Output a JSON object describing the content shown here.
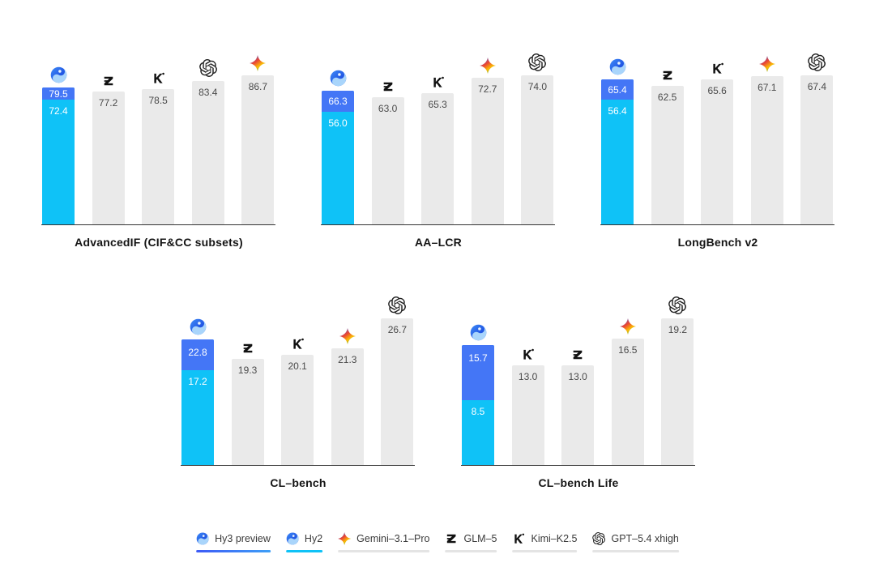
{
  "colors": {
    "hy3_blue": "#4476f6",
    "hy2_cyan": "#0fc2f7",
    "bar_gray": "#eaeaea",
    "axis": "#333333",
    "value_text": "#4a4a4a",
    "title_text": "#141414",
    "legend_text": "#3a3a3a",
    "underline_gray": "#e4e4e4",
    "hy3_underline_from": "#3d5af6",
    "hy3_underline_to": "#3e9ff7"
  },
  "chart_data": [
    {
      "type": "bar",
      "title": "AdvancedIF (CIF&CC subsets)",
      "ylim": [
        0,
        86.7
      ],
      "bars": [
        {
          "model": "Hunyuan",
          "icon": "hunyuan-icon",
          "stacked": true,
          "hy3_preview": 79.5,
          "hy2": 72.4,
          "hy3_label": "79.5",
          "hy2_label": "72.4"
        },
        {
          "model": "GLM-5",
          "icon": "glm-icon",
          "value": 77.2,
          "label": "77.2"
        },
        {
          "model": "Kimi-K2.5",
          "icon": "kimi-icon",
          "value": 78.5,
          "label": "78.5"
        },
        {
          "model": "GPT-5.4 xhigh",
          "icon": "openai-icon",
          "value": 83.4,
          "label": "83.4"
        },
        {
          "model": "Gemini-3.1-Pro",
          "icon": "gemini-icon",
          "value": 86.7,
          "label": "86.7"
        }
      ]
    },
    {
      "type": "bar",
      "title": "AA–LCR",
      "ylim": [
        0,
        74.0
      ],
      "bars": [
        {
          "model": "Hunyuan",
          "icon": "hunyuan-icon",
          "stacked": true,
          "hy3_preview": 66.3,
          "hy2": 56.0,
          "hy3_label": "66.3",
          "hy2_label": "56.0"
        },
        {
          "model": "GLM-5",
          "icon": "glm-icon",
          "value": 63.0,
          "label": "63.0"
        },
        {
          "model": "Kimi-K2.5",
          "icon": "kimi-icon",
          "value": 65.3,
          "label": "65.3"
        },
        {
          "model": "Gemini-3.1-Pro",
          "icon": "gemini-icon",
          "value": 72.7,
          "label": "72.7"
        },
        {
          "model": "GPT-5.4 xhigh",
          "icon": "openai-icon",
          "value": 74.0,
          "label": "74.0"
        }
      ]
    },
    {
      "type": "bar",
      "title": "LongBench v2",
      "ylim": [
        0,
        67.4
      ],
      "bars": [
        {
          "model": "Hunyuan",
          "icon": "hunyuan-icon",
          "stacked": true,
          "hy3_preview": 65.4,
          "hy2": 56.4,
          "hy3_label": "65.4",
          "hy2_label": "56.4"
        },
        {
          "model": "GLM-5",
          "icon": "glm-icon",
          "value": 62.5,
          "label": "62.5"
        },
        {
          "model": "Kimi-K2.5",
          "icon": "kimi-icon",
          "value": 65.6,
          "label": "65.6"
        },
        {
          "model": "Gemini-3.1-Pro",
          "icon": "gemini-icon",
          "value": 67.1,
          "label": "67.1"
        },
        {
          "model": "GPT-5.4 xhigh",
          "icon": "openai-icon",
          "value": 67.4,
          "label": "67.4"
        }
      ]
    },
    {
      "type": "bar",
      "title": "CL–bench",
      "ylim": [
        0,
        26.7
      ],
      "bars": [
        {
          "model": "Hunyuan",
          "icon": "hunyuan-icon",
          "stacked": true,
          "hy3_preview": 22.8,
          "hy2": 17.2,
          "hy3_label": "22.8",
          "hy2_label": "17.2"
        },
        {
          "model": "GLM-5",
          "icon": "glm-icon",
          "value": 19.3,
          "label": "19.3"
        },
        {
          "model": "Kimi-K2.5",
          "icon": "kimi-icon",
          "value": 20.1,
          "label": "20.1"
        },
        {
          "model": "Gemini-3.1-Pro",
          "icon": "gemini-icon",
          "value": 21.3,
          "label": "21.3"
        },
        {
          "model": "GPT-5.4 xhigh",
          "icon": "openai-icon",
          "value": 26.7,
          "label": "26.7"
        }
      ]
    },
    {
      "type": "bar",
      "title": "CL–bench Life",
      "ylim": [
        0,
        19.2
      ],
      "bars": [
        {
          "model": "Hunyuan",
          "icon": "hunyuan-icon",
          "stacked": true,
          "hy3_preview": 15.7,
          "hy2": 8.5,
          "hy3_label": "15.7",
          "hy2_label": "8.5"
        },
        {
          "model": "Kimi-K2.5",
          "icon": "kimi-icon",
          "value": 13.0,
          "label": "13.0"
        },
        {
          "model": "GLM-5",
          "icon": "glm-icon",
          "value": 13.0,
          "label": "13.0"
        },
        {
          "model": "Gemini-3.1-Pro",
          "icon": "gemini-icon",
          "value": 16.5,
          "label": "16.5"
        },
        {
          "model": "GPT-5.4 xhigh",
          "icon": "openai-icon",
          "value": 19.2,
          "label": "19.2"
        }
      ]
    }
  ],
  "legend": {
    "items": [
      {
        "label": "Hy3 preview",
        "icon": "hunyuan-icon",
        "underline": "blue-gradient"
      },
      {
        "label": "Hy2",
        "icon": "hunyuan-icon",
        "underline": "cyan"
      },
      {
        "label": "Gemini–3.1–Pro",
        "icon": "gemini-icon",
        "underline": "gray"
      },
      {
        "label": "GLM–5",
        "icon": "glm-icon",
        "underline": "gray"
      },
      {
        "label": "Kimi–K2.5",
        "icon": "kimi-icon",
        "underline": "gray"
      },
      {
        "label": "GPT–5.4 xhigh",
        "icon": "openai-icon",
        "underline": "gray"
      }
    ]
  }
}
